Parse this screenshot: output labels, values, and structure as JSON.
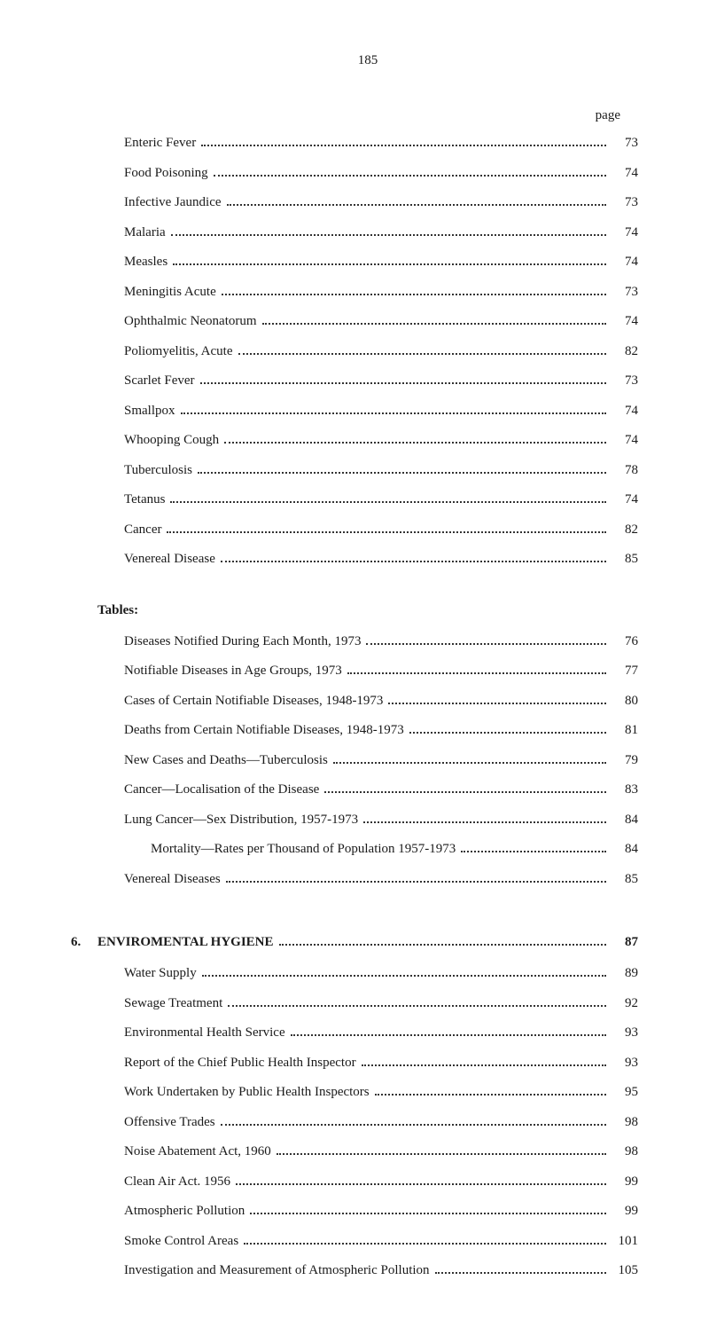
{
  "page_number": "185",
  "page_col_header": "page",
  "diseases": [
    {
      "label": "Enteric Fever",
      "page": "73"
    },
    {
      "label": "Food Poisoning",
      "page": "74"
    },
    {
      "label": "Infective Jaundice",
      "page": "73"
    },
    {
      "label": "Malaria",
      "page": "74"
    },
    {
      "label": "Measles",
      "page": "74"
    },
    {
      "label": "Meningitis Acute",
      "page": "73"
    },
    {
      "label": "Ophthalmic Neonatorum",
      "page": "74"
    },
    {
      "label": "Poliomyelitis, Acute",
      "page": "82"
    },
    {
      "label": "Scarlet Fever",
      "page": "73"
    },
    {
      "label": "Smallpox",
      "page": "74"
    },
    {
      "label": "Whooping Cough",
      "page": "74"
    },
    {
      "label": "Tuberculosis",
      "page": "78"
    },
    {
      "label": "Tetanus",
      "page": "74"
    },
    {
      "label": "Cancer",
      "page": "82"
    },
    {
      "label": "Venereal Disease",
      "page": "85"
    }
  ],
  "tables_heading": "Tables:",
  "tables": [
    {
      "label": "Diseases Notified During Each Month, 1973",
      "page": "76"
    },
    {
      "label": "Notifiable Diseases in Age Groups, 1973",
      "page": "77"
    },
    {
      "label": "Cases of Certain Notifiable Diseases, 1948-1973",
      "page": "80"
    },
    {
      "label": "Deaths from Certain Notifiable Diseases, 1948-1973",
      "page": "81"
    },
    {
      "label": "New Cases and Deaths—Tuberculosis",
      "page": "79"
    },
    {
      "label": "Cancer—Localisation of the Disease",
      "page": "83"
    },
    {
      "label": "Lung Cancer—Sex Distribution, 1957-1973",
      "page": "84"
    },
    {
      "label": "Mortality—Rates per Thousand of Population 1957-1973",
      "page": "84",
      "indent": true
    },
    {
      "label": "Venereal Diseases",
      "page": "85"
    }
  ],
  "section6": {
    "num": "6.",
    "title": "ENVIROMENTAL HYGIENE",
    "page": "87",
    "items": [
      {
        "label": "Water Supply",
        "page": "89"
      },
      {
        "label": "Sewage Treatment",
        "page": "92"
      },
      {
        "label": "Environmental Health Service",
        "page": "93"
      },
      {
        "label": "Report of the Chief Public Health Inspector",
        "page": "93"
      },
      {
        "label": "Work Undertaken by Public Health Inspectors",
        "page": "95"
      },
      {
        "label": "Offensive Trades",
        "page": "98"
      },
      {
        "label": "Noise Abatement Act, 1960",
        "page": "98"
      },
      {
        "label": "Clean Air Act. 1956",
        "page": "99"
      },
      {
        "label": "Atmospheric Pollution",
        "page": "99"
      },
      {
        "label": "Smoke Control Areas",
        "page": "101"
      },
      {
        "label": "Investigation and Measurement of Atmospheric Pollution",
        "page": "105"
      }
    ]
  }
}
